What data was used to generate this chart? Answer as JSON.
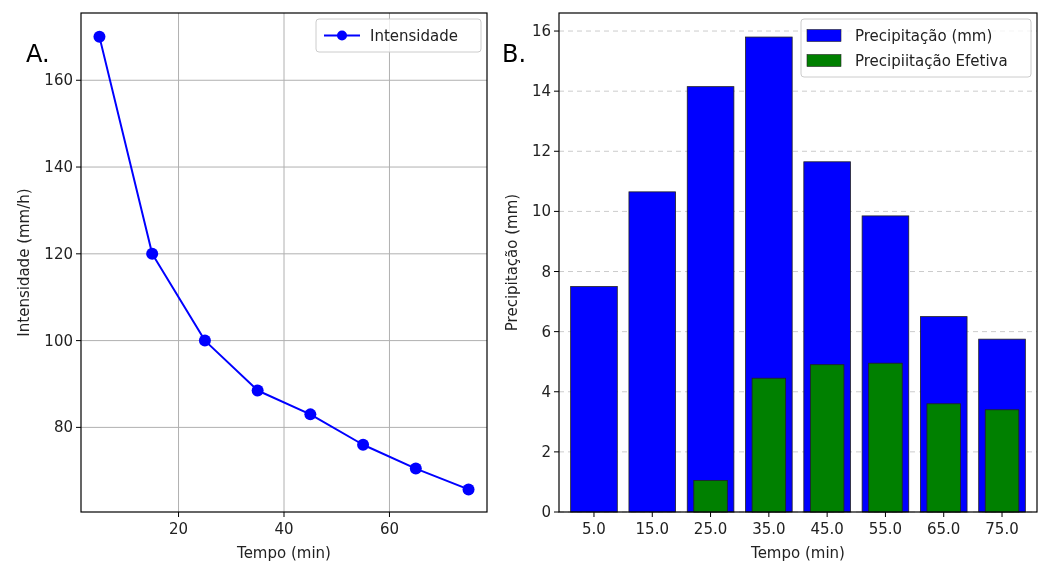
{
  "chart_data": [
    {
      "type": "line",
      "xlabel": "Tempo (min)",
      "ylabel": "Intensidade (mm/h)",
      "annotations": [
        "A."
      ],
      "x": [
        5,
        15,
        25,
        35,
        45,
        55,
        65,
        75
      ],
      "series": [
        {
          "name": "Intensidade",
          "color": "#0000ff",
          "values": [
            170,
            120,
            100,
            88.5,
            83,
            76,
            70.5,
            65.7
          ]
        }
      ],
      "xlim": [
        1.5,
        78.5
      ],
      "xticks": [
        20,
        40,
        60
      ],
      "ylim": [
        60.5,
        175.5
      ],
      "yticks": [
        80,
        100,
        120,
        140,
        160
      ],
      "grid": true,
      "legend": "top right",
      "marker": "circle",
      "line_style": "solid"
    },
    {
      "type": "bar",
      "xlabel": "Tempo (min)",
      "ylabel": "Precipitação (mm)",
      "annotations": [
        "B."
      ],
      "categories": [
        "5.0",
        "15.0",
        "25.0",
        "35.0",
        "45.0",
        "55.0",
        "65.0",
        "75.0"
      ],
      "series": [
        {
          "name": "Precipitação (mm)",
          "color": "#0000ff",
          "values": [
            7.5,
            10.65,
            14.15,
            15.8,
            11.65,
            9.85,
            6.5,
            5.75
          ]
        },
        {
          "name": "Precipiitação Efetiva",
          "color": "#008000",
          "values": [
            null,
            null,
            1.05,
            4.45,
            4.9,
            4.95,
            3.6,
            3.4
          ]
        }
      ],
      "ylim": [
        0,
        16.6
      ],
      "yticks": [
        0,
        2,
        4,
        6,
        8,
        10,
        12,
        14,
        16
      ],
      "grid": "y",
      "legend": "top right"
    }
  ]
}
